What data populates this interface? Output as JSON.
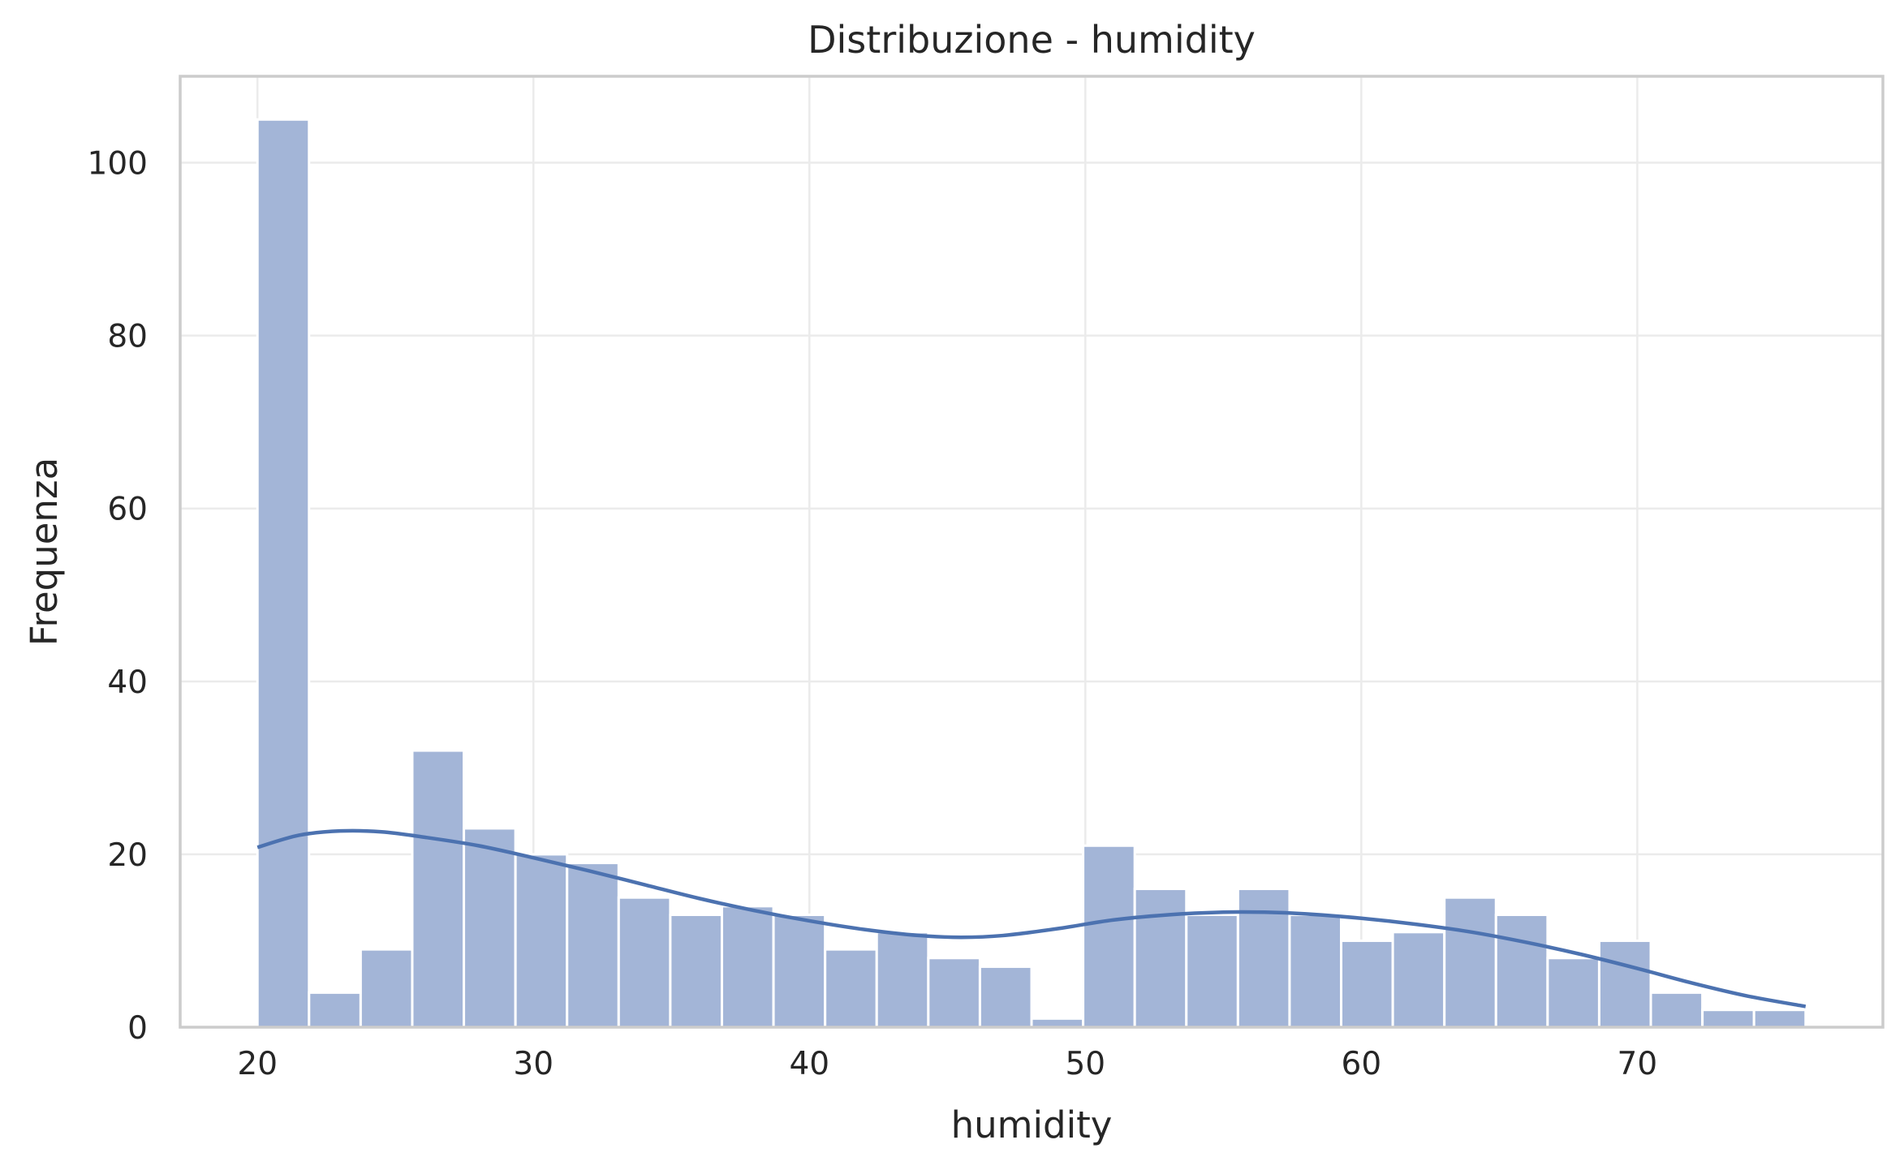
{
  "chart_data": {
    "type": "histogram",
    "title": "Distribuzione - humidity",
    "xlabel": "humidity",
    "ylabel": "Frequenza",
    "xlim": [
      17.2,
      78.9
    ],
    "ylim": [
      0,
      110
    ],
    "xticks": [
      20,
      30,
      40,
      50,
      60,
      70
    ],
    "yticks": [
      0,
      20,
      40,
      60,
      80,
      100
    ],
    "grid": true,
    "bin_edges": [
      20,
      21.87,
      23.74,
      25.61,
      27.48,
      29.35,
      31.22,
      33.09,
      34.96,
      36.83,
      38.7,
      40.57,
      42.44,
      44.31,
      46.18,
      48.05,
      49.92,
      51.79,
      53.66,
      55.53,
      57.4,
      59.27,
      61.14,
      63.01,
      64.88,
      66.75,
      68.62,
      70.49,
      72.36,
      74.23,
      76.1
    ],
    "counts": [
      105,
      4,
      9,
      32,
      23,
      20,
      19,
      15,
      13,
      14,
      13,
      9,
      11,
      8,
      7,
      1,
      21,
      16,
      13,
      16,
      13,
      10,
      11,
      15,
      13,
      8,
      10,
      4,
      2,
      2
    ],
    "kde": {
      "x": [
        20,
        21.5,
        23,
        24.5,
        26,
        28,
        30,
        32,
        34,
        36,
        38,
        40,
        42,
        44,
        45.5,
        47,
        49,
        51,
        53,
        55,
        56.5,
        58,
        60,
        62,
        64,
        66,
        68,
        70,
        72,
        74,
        76.1
      ],
      "y": [
        20.8,
        22.2,
        22.7,
        22.6,
        22.0,
        21.0,
        19.6,
        18.1,
        16.5,
        14.9,
        13.5,
        12.3,
        11.3,
        10.6,
        10.4,
        10.6,
        11.4,
        12.4,
        13.0,
        13.3,
        13.3,
        13.1,
        12.6,
        11.9,
        11.0,
        9.8,
        8.4,
        6.8,
        5.1,
        3.6,
        2.4
      ]
    },
    "colors": {
      "bar": "#a3b5d7",
      "kde": "#4c72b0"
    }
  }
}
